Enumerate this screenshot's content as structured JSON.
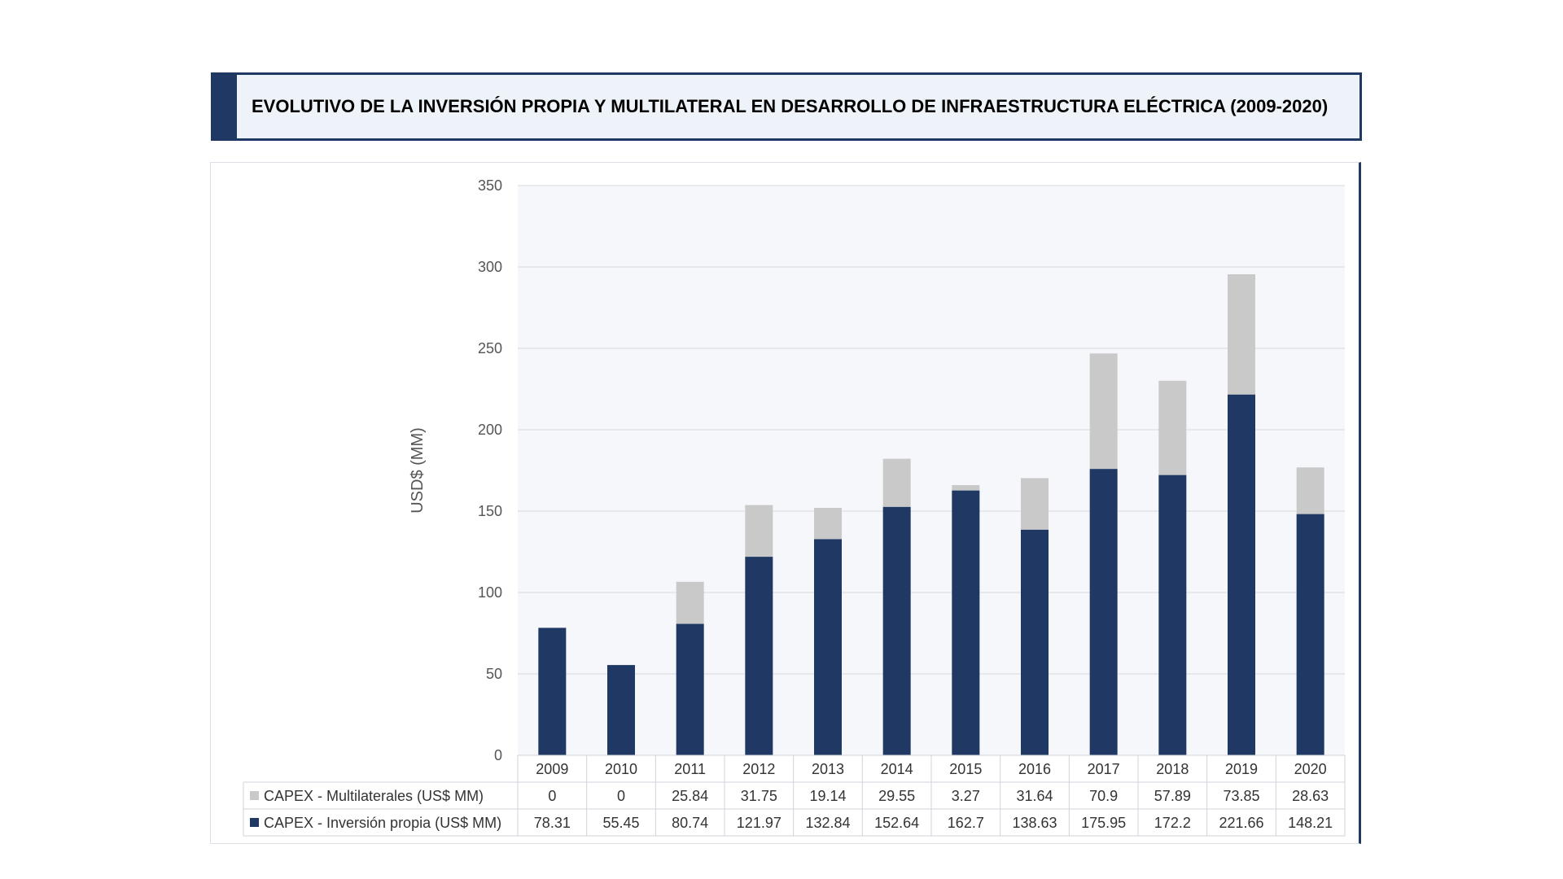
{
  "header": {
    "title": "EVOLUTIVO DE LA INVERSIÓN PROPIA Y MULTILATERAL EN DESARROLLO DE INFRAESTRUCTURA ELÉCTRICA (2009-2020)"
  },
  "colors": {
    "own": "#1f3864",
    "multilateral": "#c9c9c9",
    "plot_bg": "#f5f7fb",
    "accent": "#1f3864"
  },
  "chart_data": {
    "type": "bar",
    "stacked": true,
    "title": "EVOLUTIVO DE LA INVERSIÓN PROPIA Y MULTILATERAL EN DESARROLLO DE INFRAESTRUCTURA ELÉCTRICA (2009-2020)",
    "ylabel": "USD$ (MM)",
    "xlabel": "",
    "ylim": [
      0,
      350
    ],
    "yticks": [
      0,
      50,
      100,
      150,
      200,
      250,
      300,
      350
    ],
    "grid": true,
    "legend": "data-table",
    "categories": [
      "2009",
      "2010",
      "2011",
      "2012",
      "2013",
      "2014",
      "2015",
      "2016",
      "2017",
      "2018",
      "2019",
      "2020"
    ],
    "series": [
      {
        "name": "CAPEX - Inversión propia (US$ MM)",
        "values": [
          78.31,
          55.45,
          80.74,
          121.97,
          132.84,
          152.64,
          162.7,
          138.63,
          175.95,
          172.2,
          221.66,
          148.21
        ],
        "labels": [
          "78.31",
          "55.45",
          "80.74",
          "121.97",
          "132.84",
          "152.64",
          "162.7",
          "138.63",
          "175.95",
          "172.2",
          "221.66",
          "148.21"
        ]
      },
      {
        "name": "CAPEX - Multilaterales (US$ MM)",
        "values": [
          0,
          0,
          25.84,
          31.75,
          19.14,
          29.55,
          3.27,
          31.64,
          70.9,
          57.89,
          73.85,
          28.63
        ],
        "labels": [
          "0",
          "0",
          "25.84",
          "31.75",
          "19.14",
          "29.55",
          "3.27",
          "31.64",
          "70.9",
          "57.89",
          "73.85",
          "28.63"
        ]
      }
    ]
  }
}
